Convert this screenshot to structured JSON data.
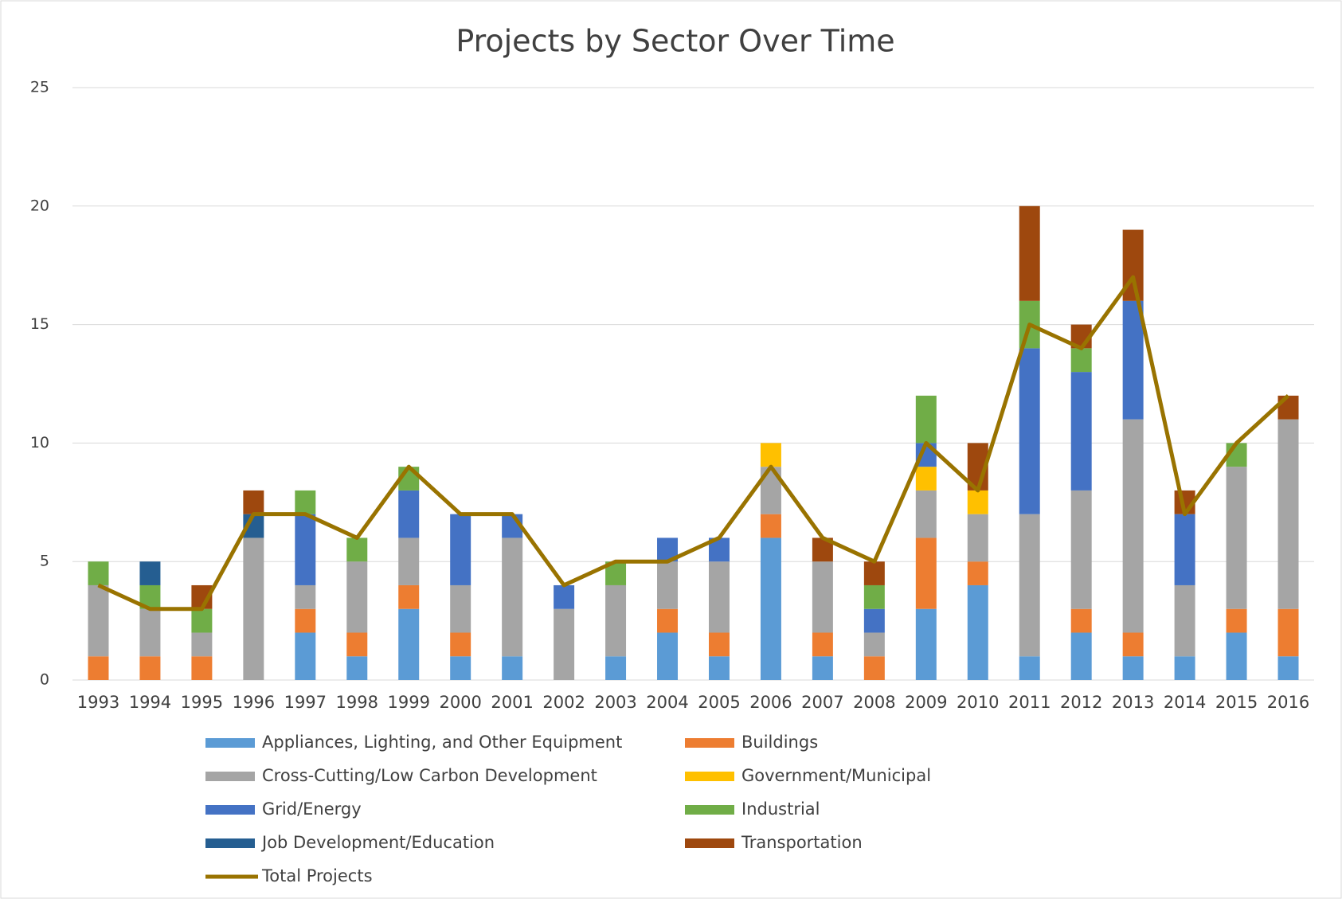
{
  "chart_data": {
    "type": "bar",
    "stacked": true,
    "title": "Projects by Sector Over Time",
    "categories": [
      "1993",
      "1994",
      "1995",
      "1996",
      "1997",
      "1998",
      "1999",
      "2000",
      "2001",
      "2002",
      "2003",
      "2004",
      "2005",
      "2006",
      "2007",
      "2008",
      "2009",
      "2010",
      "2011",
      "2012",
      "2013",
      "2014",
      "2015",
      "2016"
    ],
    "series": [
      {
        "name": "Appliances, Lighting, and Other Equipment",
        "color": "#5b9bd5",
        "values": [
          0,
          0,
          0,
          0,
          2,
          1,
          3,
          1,
          1,
          0,
          1,
          2,
          1,
          6,
          1,
          0,
          3,
          4,
          1,
          2,
          1,
          1,
          2,
          1
        ]
      },
      {
        "name": "Buildings",
        "color": "#ed7d31",
        "values": [
          1,
          1,
          1,
          0,
          1,
          1,
          1,
          1,
          0,
          0,
          0,
          1,
          1,
          1,
          1,
          1,
          3,
          1,
          0,
          1,
          1,
          0,
          1,
          2
        ]
      },
      {
        "name": "Cross-Cutting/Low Carbon Development",
        "color": "#a5a5a5",
        "values": [
          3,
          2,
          1,
          6,
          1,
          3,
          2,
          2,
          5,
          3,
          3,
          2,
          3,
          2,
          3,
          1,
          2,
          2,
          6,
          5,
          9,
          3,
          6,
          8
        ]
      },
      {
        "name": "Government/Municipal",
        "color": "#ffc000",
        "values": [
          0,
          0,
          0,
          0,
          0,
          0,
          0,
          0,
          0,
          0,
          0,
          0,
          0,
          1,
          0,
          0,
          1,
          1,
          0,
          0,
          0,
          0,
          0,
          0
        ]
      },
      {
        "name": "Grid/Energy",
        "color": "#4472c4",
        "values": [
          0,
          0,
          0,
          0,
          3,
          0,
          2,
          3,
          1,
          1,
          0,
          1,
          1,
          0,
          0,
          1,
          1,
          0,
          7,
          5,
          5,
          3,
          0,
          0
        ]
      },
      {
        "name": "Industrial",
        "color": "#70ad47",
        "values": [
          1,
          1,
          1,
          0,
          1,
          1,
          1,
          0,
          0,
          0,
          1,
          0,
          0,
          0,
          0,
          1,
          2,
          0,
          2,
          1,
          0,
          0,
          1,
          0
        ]
      },
      {
        "name": "Job Development/Education",
        "color": "#255e91",
        "values": [
          0,
          1,
          0,
          1,
          0,
          0,
          0,
          0,
          0,
          0,
          0,
          0,
          0,
          0,
          0,
          0,
          0,
          0,
          0,
          0,
          0,
          0,
          0,
          0
        ]
      },
      {
        "name": "Transportation",
        "color": "#9e480e",
        "values": [
          0,
          0,
          1,
          1,
          0,
          0,
          0,
          0,
          0,
          0,
          0,
          0,
          0,
          0,
          1,
          1,
          0,
          2,
          4,
          1,
          3,
          1,
          0,
          1
        ]
      },
      {
        "name": "Total Projects",
        "type": "line",
        "color": "#997300",
        "values": [
          4,
          3,
          3,
          7,
          7,
          6,
          9,
          7,
          7,
          4,
          5,
          5,
          6,
          9,
          6,
          5,
          10,
          8,
          15,
          14,
          17,
          7,
          10,
          12
        ]
      }
    ],
    "ylim": [
      0,
      25
    ],
    "yticks": [
      0,
      5,
      10,
      15,
      20,
      25
    ],
    "grid": true,
    "legend": "bottom"
  }
}
